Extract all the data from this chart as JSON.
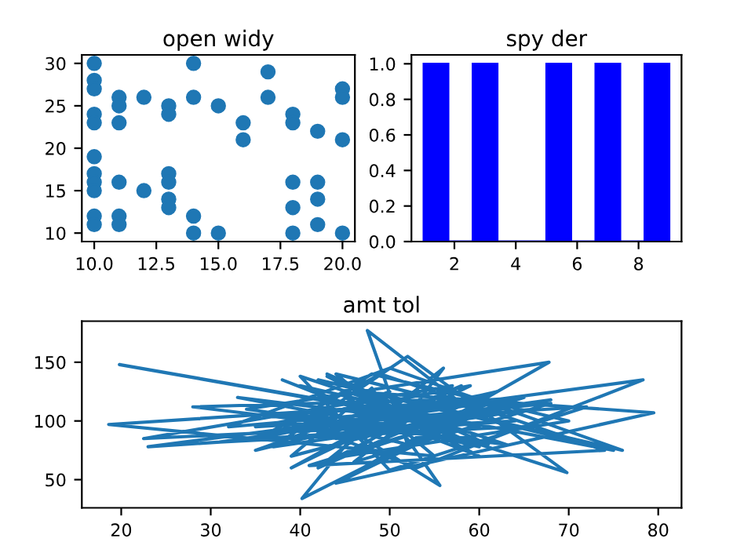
{
  "chart_data": [
    {
      "type": "scatter",
      "title": "open widy",
      "marker": "circle",
      "series": [
        {
          "color": "#1f77b4",
          "x": [
            10,
            10,
            10,
            10,
            10,
            10,
            10,
            10,
            10,
            10,
            10,
            11,
            11,
            11,
            11,
            11,
            11,
            12,
            12,
            13,
            13,
            13,
            13,
            13,
            13,
            14,
            14,
            14,
            14,
            15,
            15,
            16,
            16,
            17,
            17,
            18,
            18,
            18,
            18,
            18,
            19,
            19,
            19,
            19,
            20,
            20,
            20,
            20
          ],
          "values": [
            30,
            28,
            27,
            24,
            23,
            19,
            17,
            16,
            15,
            12,
            11,
            26,
            25,
            23,
            16,
            12,
            11,
            26,
            15,
            25,
            24,
            17,
            16,
            14,
            13,
            30,
            26,
            12,
            10,
            25,
            10,
            23,
            21,
            29,
            26,
            24,
            23,
            16,
            13,
            10,
            22,
            16,
            14,
            11,
            27,
            26,
            21,
            10
          ]
        }
      ],
      "xlim": [
        9.5,
        20.5
      ],
      "xticks": [
        {
          "value": 10,
          "label": "10.0"
        },
        {
          "value": 12.5,
          "label": "12.5"
        },
        {
          "value": 15,
          "label": "15.0"
        },
        {
          "value": 17.5,
          "label": "17.5"
        },
        {
          "value": 20,
          "label": "20.0"
        }
      ],
      "ylim": [
        9.0,
        31.0
      ],
      "yticks": [
        10,
        15,
        20,
        25,
        30
      ]
    },
    {
      "type": "histogram",
      "title": "spy der",
      "color": "#0000ff",
      "bins": [
        1,
        1.8,
        2.6,
        3.4,
        4.2,
        5,
        5.8,
        6.6,
        7.4,
        8.2,
        9
      ],
      "values": [
        1,
        0,
        1,
        0,
        0,
        1,
        0,
        1,
        0,
        1
      ],
      "xlim": [
        0.6,
        9.4
      ],
      "xticks": [
        2,
        4,
        6,
        8
      ],
      "ylim": [
        0,
        1.05
      ],
      "yticks": [
        {
          "value": 0,
          "label": "0.0"
        },
        {
          "value": 0.2,
          "label": "0.2"
        },
        {
          "value": 0.4,
          "label": "0.4"
        },
        {
          "value": 0.6,
          "label": "0.6"
        },
        {
          "value": 0.8,
          "label": "0.8"
        },
        {
          "value": 1,
          "label": "1.0"
        }
      ]
    },
    {
      "type": "line",
      "title": "amt tol",
      "marker": "none",
      "line_style": "solid",
      "series": [
        {
          "color": "#1f77b4",
          "x": [
            50,
            45,
            55,
            40,
            60,
            19.8,
            48,
            35,
            62,
            42,
            58,
            47.5,
            52,
            38,
            65,
            18.6,
            55,
            44,
            60,
            40.2,
            50,
            36,
            64,
            22.5,
            57,
            46,
            68,
            41,
            53,
            78.3,
            49,
            33,
            61,
            43,
            56,
            69.8,
            52,
            37,
            66,
            45,
            55.6,
            48,
            39,
            63,
            23,
            51,
            34,
            67.8,
            47,
            58,
            42,
            76,
            50,
            32,
            62,
            53,
            44,
            79.5,
            46,
            60,
            38,
            53,
            57,
            41,
            74,
            49,
            36,
            65,
            43,
            54,
            47,
            59,
            35,
            72,
            50,
            40,
            63,
            28,
            55,
            45,
            70,
            48,
            37,
            61,
            42,
            56,
            52,
            31,
            64,
            46,
            75,
            51,
            39,
            58,
            44,
            68,
            49,
            60,
            43,
            53
          ],
          "values": [
            100,
            120,
            85,
            130,
            95,
            148,
            110,
            75,
            125,
            90,
            115,
            177,
            80,
            105,
            120,
            97,
            70,
            140,
            110,
            34,
            125,
            85,
            100,
            85,
            130,
            65,
            115,
            95,
            60,
            135,
            105,
            120,
            80,
            140,
            90,
            56,
            155,
            78,
            110,
            95,
            45,
            128,
            70,
            118,
            78,
            92,
            110,
            150,
            60,
            105,
            135,
            75,
            145,
            95,
            115,
            80,
            47,
            107,
            125,
            70,
            135,
            90,
            100,
            62,
            75,
            140,
            88,
            120,
            65,
            108,
            85,
            130,
            95,
            112,
            58,
            138,
            80,
            112,
            118,
            70,
            100,
            140,
            88,
            123,
            60,
            145,
            105,
            82,
            95,
            128,
            75,
            110,
            60,
            130,
            85,
            118,
            98,
            78,
            138,
            100
          ]
        }
      ],
      "xlim": [
        15.6,
        82.6
      ],
      "xticks": [
        20,
        30,
        40,
        50,
        60,
        70,
        80
      ],
      "ylim": [
        26,
        185
      ],
      "yticks": [
        50,
        100,
        150
      ]
    }
  ]
}
